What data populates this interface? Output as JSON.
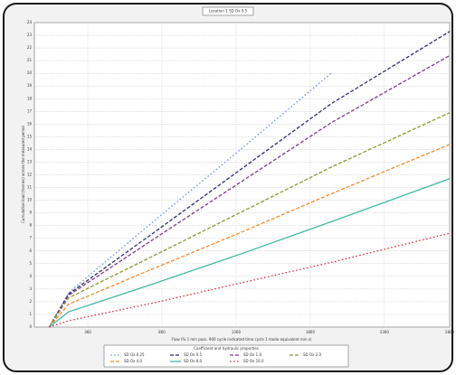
{
  "chart_data": {
    "type": "line",
    "title": "Location 1 SD Ox 0.5",
    "x_label": "Flow (% 1 min pass, 900 cycle indicated time cycle 1 mode equivalent min s)",
    "y_label": "Cumulative load (tonnes) across the measured period",
    "legend_title": "Coefficient and hydraulic properties",
    "x": [
      100,
      230,
      800,
      1400,
      2000,
      2800
    ],
    "xlim": [
      0,
      2800
    ],
    "xticks": [
      360,
      860,
      1360,
      1860,
      2360,
      2800
    ],
    "ylim": [
      0,
      24
    ],
    "yticks": [
      0,
      1,
      2,
      3,
      4,
      5,
      6,
      7,
      8,
      9,
      10,
      11,
      12,
      13,
      14,
      15,
      16,
      17,
      18,
      19,
      20,
      21,
      22,
      23,
      24
    ],
    "grid": true,
    "series": [
      {
        "name": "SD Ox 0.25",
        "color": "#6f8fe0",
        "dash": "dotted",
        "values": [
          0,
          2.7,
          8.3,
          14.1,
          20.0,
          null
        ]
      },
      {
        "name": "SD Ox 0.5",
        "color": "#2b2f6e",
        "dash": "dashed",
        "values": [
          0,
          2.6,
          7.4,
          12.5,
          17.6,
          23.3
        ]
      },
      {
        "name": "SD Ox 1.0",
        "color": "#7a3c8f",
        "dash": "dashed",
        "values": [
          0,
          2.5,
          6.9,
          11.5,
          16.1,
          21.4
        ]
      },
      {
        "name": "SD Ox 2.0",
        "color": "#8a9a2a",
        "dash": "dashed",
        "values": [
          0,
          2.3,
          5.6,
          9.1,
          12.6,
          16.9
        ]
      },
      {
        "name": "SD Ox 4.0",
        "color": "#f08a2a",
        "dash": "dashed",
        "values": [
          0,
          1.8,
          4.6,
          7.5,
          10.5,
          14.4
        ]
      },
      {
        "name": "SD Ox 8.0",
        "color": "#3fb8a0",
        "dash": "solid",
        "values": [
          0,
          1.2,
          3.4,
          5.8,
          8.3,
          11.7
        ]
      },
      {
        "name": "SD Ox 16.0",
        "color": "#e0203a",
        "dash": "dotted",
        "values": [
          0,
          0.5,
          1.9,
          3.5,
          5.1,
          7.4
        ]
      }
    ]
  }
}
